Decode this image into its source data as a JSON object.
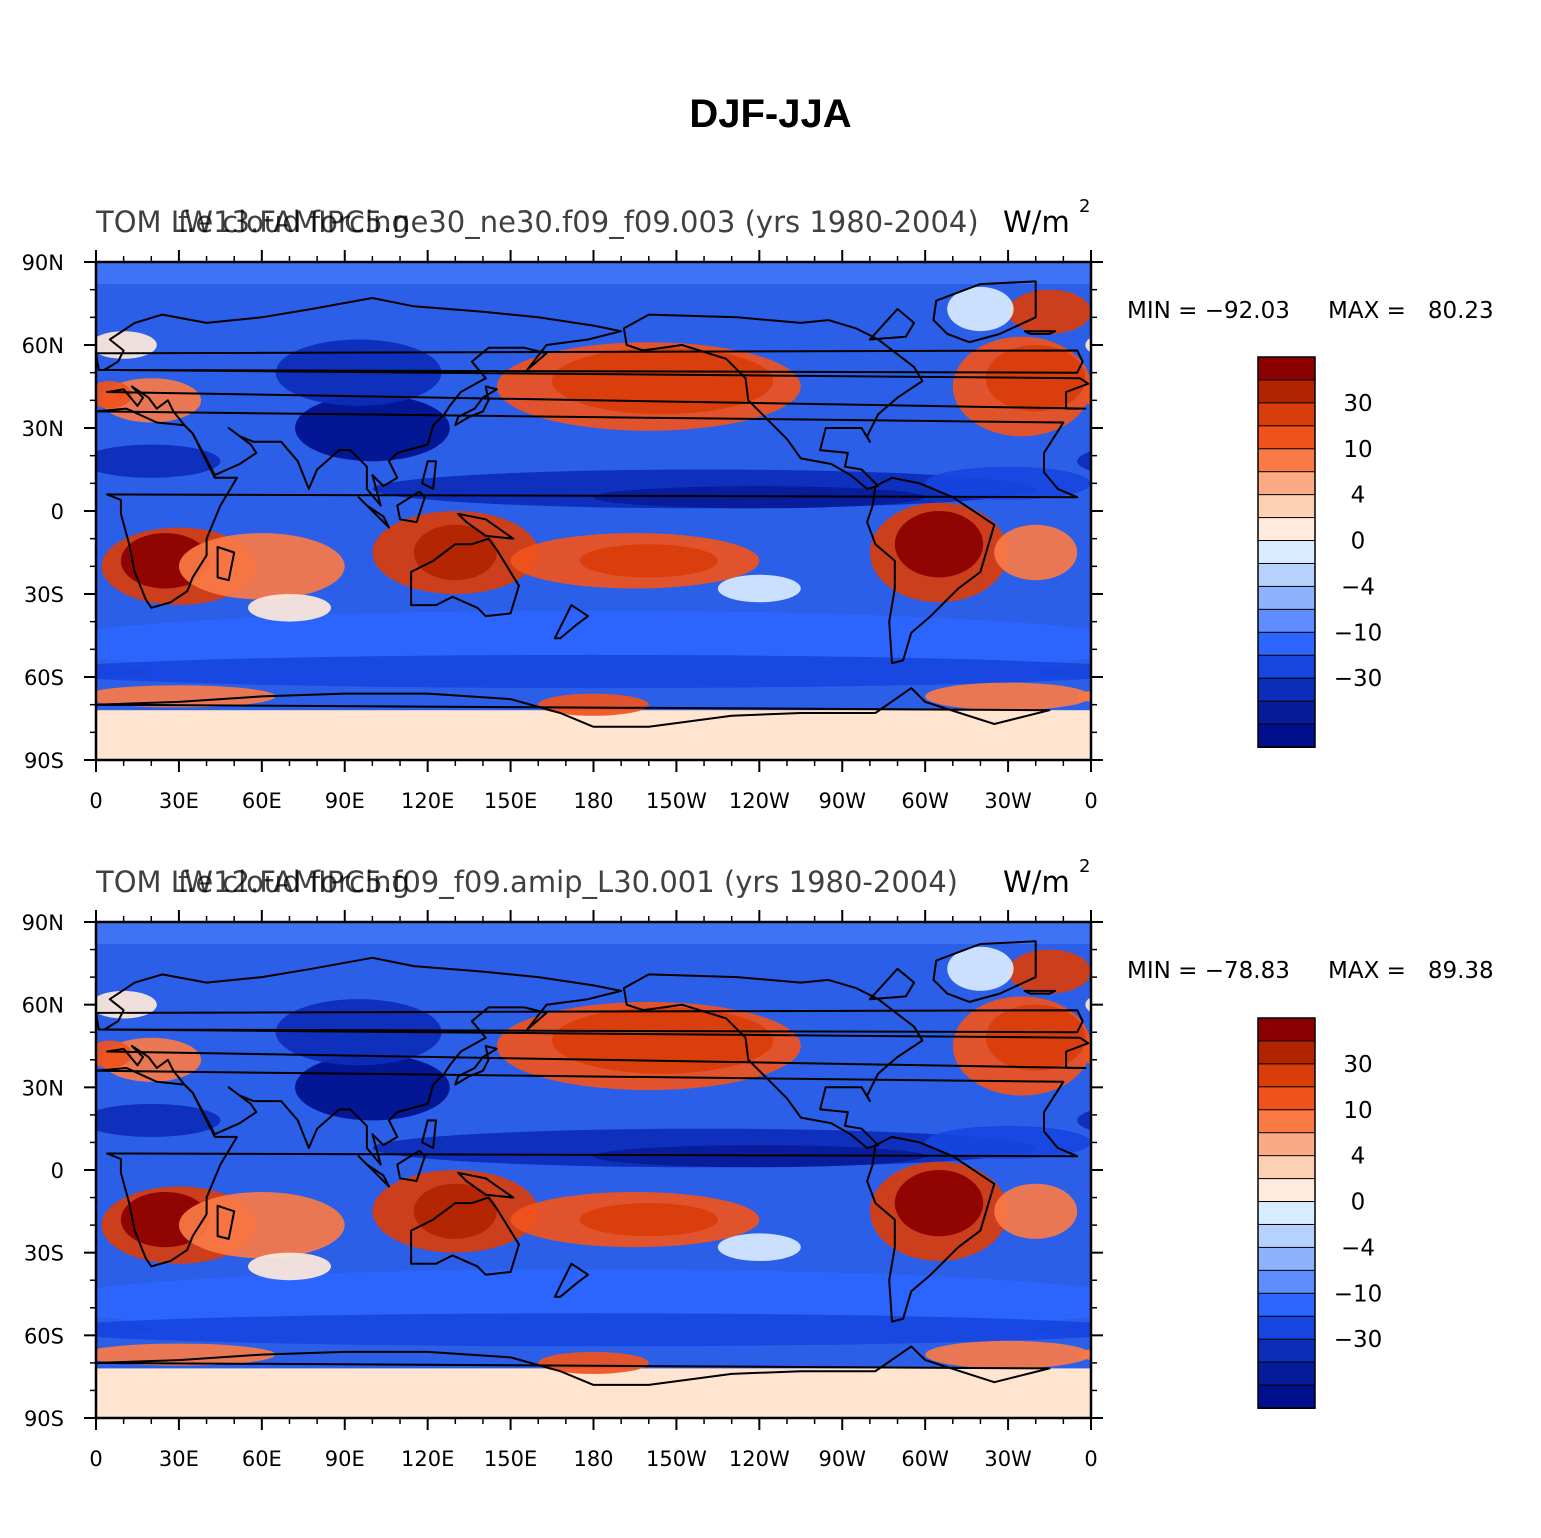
{
  "figure": {
    "title": "DJF-JJA"
  },
  "chart_data": [
    {
      "type": "heatmap",
      "panel": "top",
      "left_title": "TOM LW cloud forcing",
      "center_title": "f.e13.FAMIPC5.ne30_ne30.f09_f09.003 (yrs 1980-2004)",
      "units_label": "W/m",
      "units_sup": "2",
      "stats": {
        "min_label": "MIN = −92.03",
        "max_label": "MAX =   80.23"
      },
      "min": -92.03,
      "max": 80.23,
      "x_ticks": [
        "0",
        "30E",
        "60E",
        "90E",
        "120E",
        "150E",
        "180",
        "150W",
        "120W",
        "90W",
        "60W",
        "30W",
        "0"
      ],
      "y_ticks": [
        "90N",
        "60N",
        "30N",
        "0",
        "30S",
        "60S",
        "90S"
      ],
      "x_range": [
        0,
        360
      ],
      "y_range": [
        -90,
        90
      ]
    },
    {
      "type": "heatmap",
      "panel": "bottom",
      "left_title": "TOM LW cloud forcing",
      "center_title": "f.e12.FAMIPC5.f09_f09.amip_L30.001 (yrs 1980-2004)",
      "units_label": "W/m",
      "units_sup": "2",
      "stats": {
        "min_label": "MIN = −78.83",
        "max_label": "MAX =   89.38"
      },
      "min": -78.83,
      "max": 89.38,
      "x_ticks": [
        "0",
        "30E",
        "60E",
        "90E",
        "120E",
        "150E",
        "180",
        "150W",
        "120W",
        "90W",
        "60W",
        "30W",
        "0"
      ],
      "y_ticks": [
        "90N",
        "60N",
        "30N",
        "0",
        "30S",
        "60S",
        "90S"
      ],
      "x_range": [
        0,
        360
      ],
      "y_range": [
        -90,
        90
      ]
    }
  ],
  "colorbar": {
    "colors": [
      "#8B0000",
      "#B22400",
      "#D93D0A",
      "#F0521C",
      "#FA7A45",
      "#FCAA85",
      "#FDD0B4",
      "#FFEADB",
      "#D8ECFF",
      "#B7D1FF",
      "#8FB2FF",
      "#5E8DFF",
      "#2C66FF",
      "#1745E0",
      "#0C2DB8",
      "#061C98",
      "#00108C"
    ],
    "labels": [
      "30",
      "10",
      "4",
      "0",
      "−4",
      "−10",
      "−30"
    ]
  },
  "map": {
    "ocean_color": "#2B5FE8",
    "polar_color": "#3F73F5",
    "antarctic_color": "#FFE4D0",
    "coast_color": "#000000"
  }
}
